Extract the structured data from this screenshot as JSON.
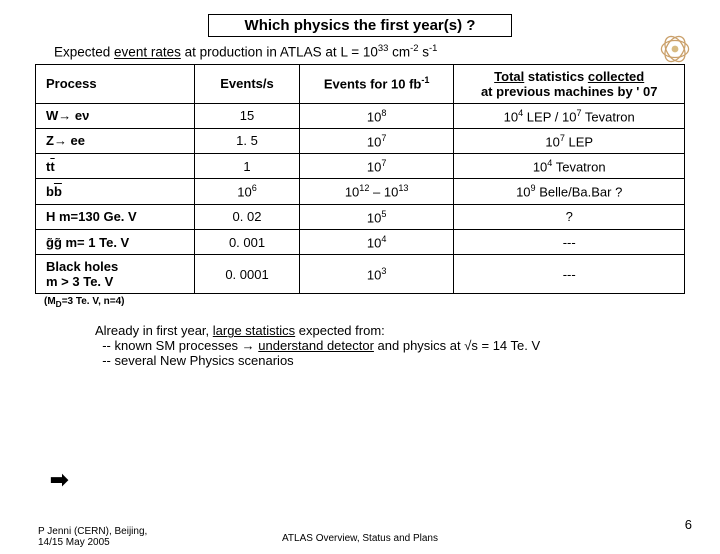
{
  "title": "Which physics the first year(s) ?",
  "subtitle_prefix": "Expected ",
  "subtitle_eventrates": "event rates",
  "subtitle_mid": " at production in ATLAS at L = 10",
  "subtitle_exp": "33",
  "subtitle_unit1": " cm",
  "subtitle_exp2": "-2",
  "subtitle_unit2": " s",
  "subtitle_exp3": "-1",
  "hdr_process": "Process",
  "hdr_events_s": "Events/s",
  "hdr_events_for_pre": "Events for 10 fb",
  "hdr_events_for_sup": "-1",
  "hdr_total_a": "Total",
  "hdr_total_b": " statistics ",
  "hdr_total_c": "collected",
  "hdr_total_line2": "at previous machines by ' 07",
  "rows": [
    {
      "proc_html": "W→ eν",
      "evs": "15",
      "evf_base": "10",
      "evf_sup": "8",
      "tot": "10{4} LEP / 10{7} Tevatron"
    },
    {
      "proc_html": "Z→ ee",
      "evs": "1. 5",
      "evf_base": "10",
      "evf_sup": "7",
      "tot": "10{7} LEP"
    },
    {
      "proc_html": "tt̄",
      "evs": "1",
      "evf_base": "10",
      "evf_sup": "7",
      "tot": "10{4} Tevatron"
    },
    {
      "proc_html": "bb̄",
      "evs_base": "10",
      "evs_sup": "6",
      "evf_text": "10{12} – 10{13}",
      "tot": "10{9} Belle/Ba.Bar  ?"
    },
    {
      "proc_html": "H  m=130 Ge. V",
      "evs": "0. 02",
      "evf_base": "10",
      "evf_sup": "5",
      "tot": "?"
    },
    {
      "proc_html": "g̃g̃   m= 1 Te. V",
      "evs": "0. 001",
      "evf_base": "10",
      "evf_sup": "4",
      "tot": "---"
    },
    {
      "proc_html": "Black holes<br>m > 3 Te. V",
      "evs": "0. 0001",
      "evf_base": "10",
      "evf_sup": "3",
      "tot": "---"
    }
  ],
  "smallnote_pre": "(M",
  "smallnote_sub": "D",
  "smallnote_post": "=3 Te. V, n=4)",
  "bottom1_a": "Already in first year, ",
  "bottom1_b": "large statistics",
  "bottom1_c": " expected from:",
  "bottom2_a": "  -- known SM processes → ",
  "bottom2_b": "understand detector",
  "bottom2_c": " and physics at √s = 14 Te. V",
  "bottom3": "  -- several New Physics scenarios",
  "footer_left_l1": "P Jenni (CERN), Beijing,",
  "footer_left_l2": "14/15 May 2005",
  "footer_center": "ATLAS Overview, Status and Plans",
  "page": "6"
}
